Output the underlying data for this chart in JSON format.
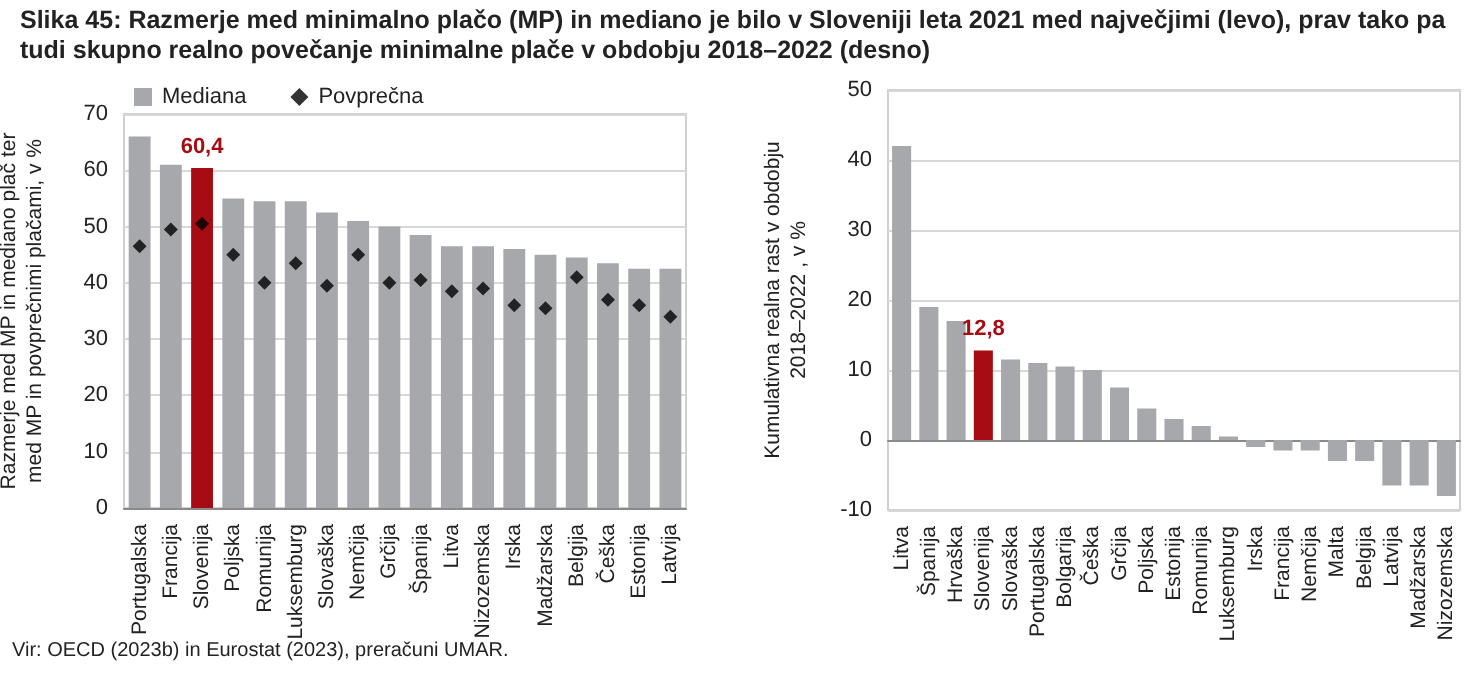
{
  "chart_data": [
    {
      "type": "bar",
      "title": "Slika 45: Razmerje med minimalno plačo (MP) in mediano je bilo v Sloveniji leta 2021 med največjimi (levo), prav tako pa tudi skupno realno povečanje minimalne plače v obdobju 2018–2022 (desno)",
      "ylabel": "Razmerje med MP in mediano plač ter med MP in povprečnimi plačami, v %",
      "annotations": [
        "Vir: OECD (2023b) in Eurostat (2023), preračuni UMAR."
      ],
      "categories": [
        "Portugalska",
        "Francija",
        "Slovenija",
        "Poljska",
        "Romunija",
        "Luksemburg",
        "Slovaška",
        "Nemčija",
        "Grčija",
        "Španija",
        "Litva",
        "Nizozemska",
        "Irska",
        "Madžarska",
        "Belgija",
        "Češka",
        "Estonija",
        "Latvija"
      ],
      "series": [
        {
          "name": "Mediana",
          "type": "bar",
          "color": "#a6a8ab",
          "colors": [
            "#a6a8ab",
            "#a6a8ab",
            "#a50d12",
            "#a6a8ab",
            "#a6a8ab",
            "#a6a8ab",
            "#a6a8ab",
            "#a6a8ab",
            "#a6a8ab",
            "#a6a8ab",
            "#a6a8ab",
            "#a6a8ab",
            "#a6a8ab",
            "#a6a8ab",
            "#a6a8ab",
            "#a6a8ab",
            "#a6a8ab",
            "#a6a8ab"
          ],
          "values": [
            66,
            61,
            60.4,
            55,
            54.5,
            54.5,
            52.5,
            51,
            50,
            48.5,
            46.5,
            46.5,
            46,
            45,
            44.5,
            43.5,
            42.5,
            42.5
          ],
          "value_labels": [
            null,
            null,
            "60,4",
            null,
            null,
            null,
            null,
            null,
            null,
            null,
            null,
            null,
            null,
            null,
            null,
            null,
            null,
            null
          ]
        },
        {
          "name": "Povprečna",
          "type": "scatter",
          "color": "#000000",
          "values": [
            46.5,
            49.5,
            50.5,
            45,
            40,
            43.5,
            39.5,
            45,
            40,
            40.5,
            38.5,
            39,
            36,
            35.5,
            41,
            37,
            36,
            34
          ]
        }
      ],
      "ylim": [
        0,
        70
      ],
      "yticks": [
        0,
        10,
        20,
        30,
        40,
        50,
        60,
        70
      ],
      "grid": "y",
      "legend": "top left",
      "marker": "diamond"
    },
    {
      "type": "bar",
      "ylabel": "Kumulativna realna rast v obdobju 2018–2022 , v %",
      "categories": [
        "Litva",
        "Španija",
        "Hrvaška",
        "Slovenija",
        "Slovaška",
        "Portugalska",
        "Bolgarija",
        "Češka",
        "Grčija",
        "Poljska",
        "Estonija",
        "Romunija",
        "Luksemburg",
        "Irska",
        "Francija",
        "Nemčija",
        "Malta",
        "Belgija",
        "Latvija",
        "Madžarska",
        "Nizozemska"
      ],
      "values": [
        42,
        19,
        17,
        12.8,
        11.5,
        11,
        10.5,
        10,
        7.5,
        4.5,
        3,
        2,
        0.5,
        -1,
        -1.5,
        -1.5,
        -3,
        -3,
        -6.5,
        -6.5,
        -8
      ],
      "colors": [
        "#a6a8ab",
        "#a6a8ab",
        "#a6a8ab",
        "#a50d12",
        "#a6a8ab",
        "#a6a8ab",
        "#a6a8ab",
        "#a6a8ab",
        "#a6a8ab",
        "#a6a8ab",
        "#a6a8ab",
        "#a6a8ab",
        "#a6a8ab",
        "#a6a8ab",
        "#a6a8ab",
        "#a6a8ab",
        "#a6a8ab",
        "#a6a8ab",
        "#a6a8ab",
        "#a6a8ab",
        "#a6a8ab"
      ],
      "value_labels": [
        null,
        null,
        null,
        "12,8",
        null,
        null,
        null,
        null,
        null,
        null,
        null,
        null,
        null,
        null,
        null,
        null,
        null,
        null,
        null,
        null,
        null
      ],
      "ylim": [
        -10,
        50
      ],
      "yticks": [
        -10,
        0,
        10,
        20,
        30,
        40,
        50
      ],
      "grid": "y"
    }
  ]
}
